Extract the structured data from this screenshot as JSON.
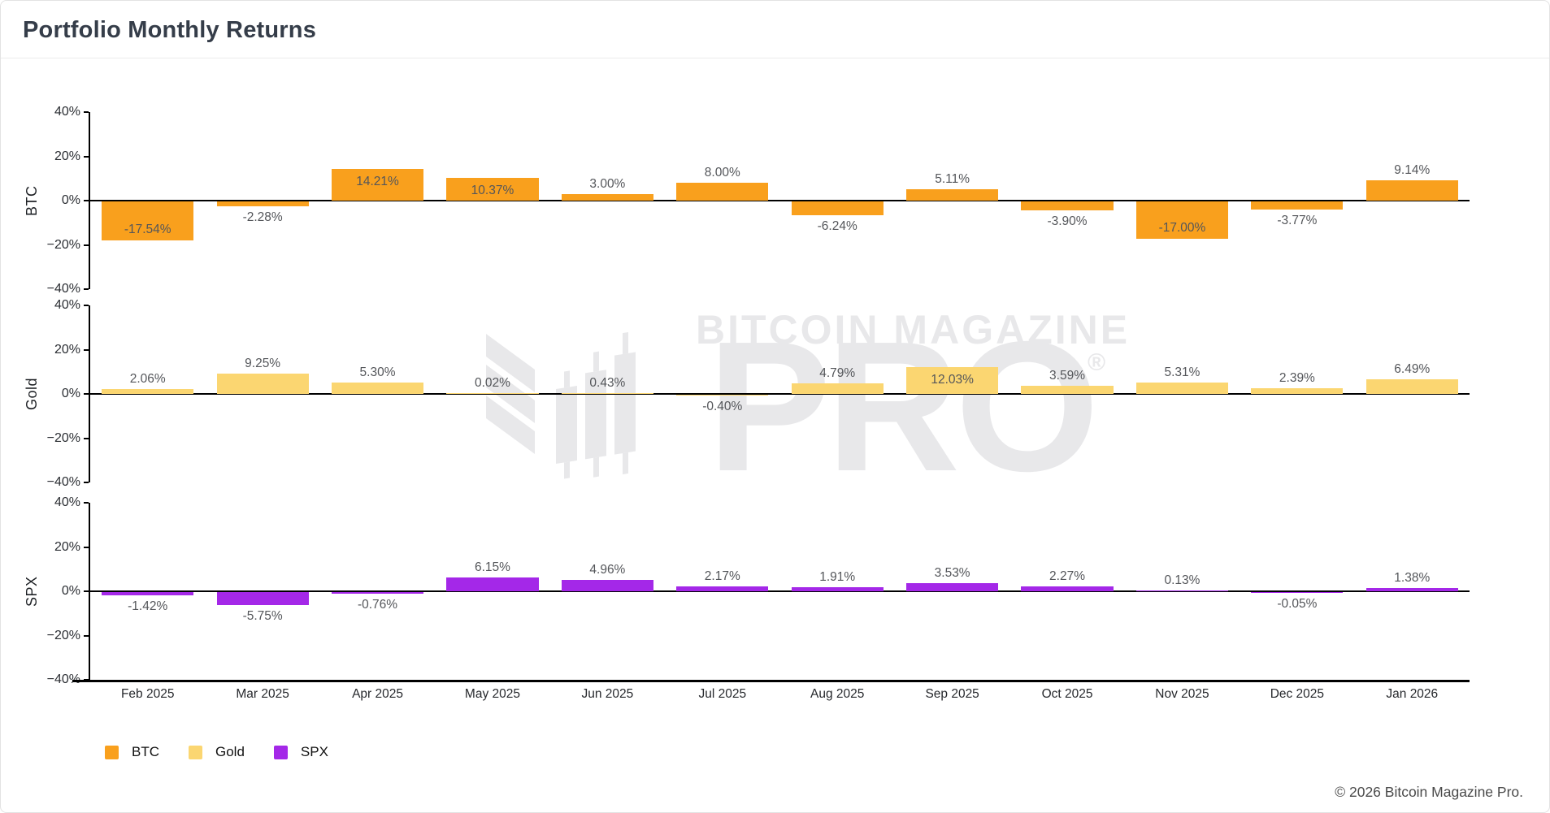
{
  "header": {
    "title": "Portfolio Monthly Returns"
  },
  "watermark": {
    "line1": "BITCOIN MAGAZINE",
    "line2": "PRO",
    "registered": "®",
    "color": "#e8e8ea"
  },
  "footer": {
    "copyright": "© 2026 Bitcoin Magazine Pro."
  },
  "legend": [
    {
      "label": "BTC",
      "color": "#F9A01D"
    },
    {
      "label": "Gold",
      "color": "#FBD671"
    },
    {
      "label": "SPX",
      "color": "#A428E8"
    }
  ],
  "chart_data": {
    "type": "bar",
    "title": "Portfolio Monthly Returns",
    "layout": "three vertically stacked subplots (BTC, Gold, SPX) sharing one x-axis; value labels on every bar; legend bottom-left",
    "grid": false,
    "categories": [
      "Feb 2025",
      "Mar 2025",
      "Apr 2025",
      "May 2025",
      "Jun 2025",
      "Jul 2025",
      "Aug 2025",
      "Sep 2025",
      "Oct 2025",
      "Nov 2025",
      "Dec 2025",
      "Jan 2026"
    ],
    "ylim": [
      -40,
      40
    ],
    "yticks": [
      "40%",
      "20%",
      "0%",
      "−20%",
      "−40%"
    ],
    "ytick_values": [
      40,
      20,
      0,
      -20,
      -40
    ],
    "series": [
      {
        "name": "BTC",
        "color": "#F9A01D",
        "values": [
          -17.54,
          -2.28,
          14.21,
          10.37,
          3.0,
          8.0,
          -6.24,
          5.11,
          -3.9,
          -17.0,
          -3.77,
          9.14
        ],
        "labels": [
          "-17.54%",
          "-2.28%",
          "14.21%",
          "10.37%",
          "3.00%",
          "8.00%",
          "-6.24%",
          "5.11%",
          "-3.90%",
          "-17.00%",
          "-3.77%",
          "9.14%"
        ]
      },
      {
        "name": "Gold",
        "color": "#FBD671",
        "values": [
          2.06,
          9.25,
          5.3,
          0.02,
          0.43,
          -0.4,
          4.79,
          12.03,
          3.59,
          5.31,
          2.39,
          6.49
        ],
        "labels": [
          "2.06%",
          "9.25%",
          "5.30%",
          "0.02%",
          "0.43%",
          "-0.40%",
          "4.79%",
          "12.03%",
          "3.59%",
          "5.31%",
          "2.39%",
          "6.49%"
        ]
      },
      {
        "name": "SPX",
        "color": "#A428E8",
        "values": [
          -1.42,
          -5.75,
          -0.76,
          6.15,
          4.96,
          2.17,
          1.91,
          3.53,
          2.27,
          0.13,
          -0.05,
          1.38
        ],
        "labels": [
          "-1.42%",
          "-5.75%",
          "-0.76%",
          "6.15%",
          "4.96%",
          "2.17%",
          "1.91%",
          "3.53%",
          "2.27%",
          "0.13%",
          "-0.05%",
          "1.38%"
        ]
      }
    ]
  }
}
